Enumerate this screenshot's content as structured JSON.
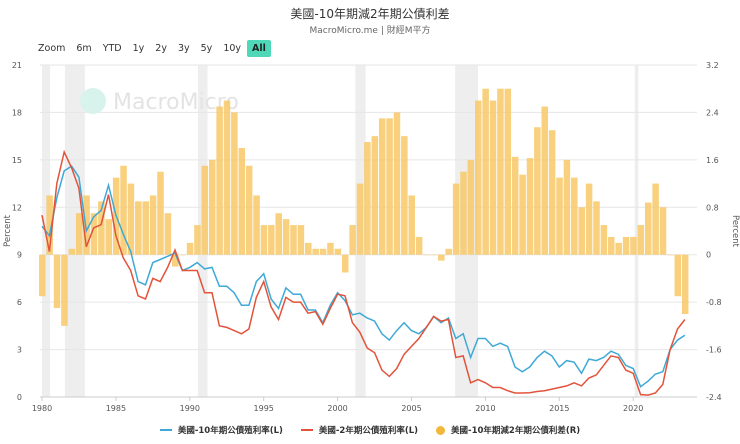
{
  "title": "美國-10年期減2年期公債利差",
  "subtitle": "MacroMicro.me | 財經M平方",
  "watermark": "MacroMicro",
  "range_selector": {
    "label": "Zoom",
    "buttons": [
      "6m",
      "YTD",
      "1y",
      "2y",
      "3y",
      "5y",
      "10y",
      "All"
    ],
    "active": "All"
  },
  "colors": {
    "ten_year": "#3ea9d6",
    "two_year": "#e2533a",
    "spread": "#f7c867",
    "recession": "#eeeeee",
    "active_button": "#4fd8b8"
  },
  "chart_data": {
    "type": "line+bar",
    "ylabel_left": "Percent",
    "ylabel_right": "Percent",
    "ylim_left": [
      0,
      21
    ],
    "yticks_left": [
      "0",
      "3",
      "6",
      "9",
      "12",
      "15",
      "18",
      "21"
    ],
    "ylim_right": [
      -2.4,
      3.2
    ],
    "yticks_right": [
      "-2.4",
      "-1.6",
      "-0.8",
      "0",
      "0.8",
      "1.6",
      "2.4",
      "3.2"
    ],
    "xlim": [
      1979.8,
      2024.2
    ],
    "xticks": [
      "1980",
      "1985",
      "1990",
      "1995",
      "2000",
      "2005",
      "2010",
      "2015",
      "2020"
    ],
    "grid": "horizontal",
    "legend_position": "bottom",
    "recessions": [
      [
        1980.0,
        1980.55
      ],
      [
        1981.55,
        1982.9
      ],
      [
        1990.55,
        1991.2
      ],
      [
        2001.2,
        2001.9
      ],
      [
        2007.95,
        2009.5
      ],
      [
        2020.1,
        2020.35
      ]
    ],
    "x": [
      1980.0,
      1980.5,
      1981.0,
      1981.5,
      1982.0,
      1982.5,
      1983.0,
      1983.5,
      1984.0,
      1984.5,
      1985.0,
      1985.5,
      1986.0,
      1986.5,
      1987.0,
      1987.5,
      1988.0,
      1988.5,
      1989.0,
      1989.5,
      1990.0,
      1990.5,
      1991.0,
      1991.5,
      1992.0,
      1992.5,
      1993.0,
      1993.5,
      1994.0,
      1994.5,
      1995.0,
      1995.5,
      1996.0,
      1996.5,
      1997.0,
      1997.5,
      1998.0,
      1998.5,
      1999.0,
      1999.5,
      2000.0,
      2000.5,
      2001.0,
      2001.5,
      2002.0,
      2002.5,
      2003.0,
      2003.5,
      2004.0,
      2004.5,
      2005.0,
      2005.5,
      2006.0,
      2006.5,
      2007.0,
      2007.5,
      2008.0,
      2008.5,
      2009.0,
      2009.5,
      2010.0,
      2010.5,
      2011.0,
      2011.5,
      2012.0,
      2012.5,
      2013.0,
      2013.5,
      2014.0,
      2014.5,
      2015.0,
      2015.5,
      2016.0,
      2016.5,
      2017.0,
      2017.5,
      2018.0,
      2018.5,
      2019.0,
      2019.5,
      2020.0,
      2020.5,
      2021.0,
      2021.5,
      2022.0,
      2022.5,
      2023.0,
      2023.5
    ],
    "series": [
      {
        "name": "美國-10年期公債殖利率(L)",
        "axis": "left",
        "type": "line",
        "values": [
          10.8,
          10.2,
          12.6,
          14.3,
          14.6,
          13.9,
          10.5,
          11.4,
          11.8,
          13.4,
          11.5,
          10.3,
          9.2,
          7.3,
          7.1,
          8.5,
          8.7,
          8.9,
          9.1,
          8.0,
          8.2,
          8.5,
          8.1,
          8.2,
          7.0,
          7.0,
          6.6,
          5.8,
          5.8,
          7.3,
          7.8,
          6.2,
          5.6,
          6.9,
          6.5,
          6.5,
          5.5,
          5.5,
          4.7,
          5.8,
          6.6,
          6.1,
          5.2,
          5.3,
          5.0,
          4.8,
          4.0,
          3.6,
          4.2,
          4.7,
          4.2,
          4.0,
          4.4,
          5.1,
          4.7,
          5.0,
          3.7,
          4.0,
          2.5,
          3.7,
          3.7,
          3.2,
          3.4,
          3.2,
          1.9,
          1.6,
          1.9,
          2.5,
          2.9,
          2.6,
          1.9,
          2.3,
          2.2,
          1.5,
          2.4,
          2.3,
          2.5,
          2.9,
          2.7,
          2.0,
          1.8,
          0.65,
          1.0,
          1.45,
          1.6,
          3.0,
          3.6,
          3.9
        ]
      },
      {
        "name": "美國-2年期公債殖利率(L)",
        "axis": "left",
        "type": "line",
        "values": [
          11.5,
          9.2,
          13.5,
          15.5,
          14.5,
          13.2,
          9.5,
          10.7,
          10.9,
          12.8,
          10.2,
          8.8,
          8.0,
          6.4,
          6.2,
          7.5,
          7.3,
          8.2,
          9.3,
          8.0,
          8.0,
          8.0,
          6.6,
          6.6,
          4.5,
          4.4,
          4.2,
          4.0,
          4.3,
          6.3,
          7.3,
          5.7,
          4.9,
          6.3,
          6.0,
          6.0,
          5.3,
          5.4,
          4.6,
          5.6,
          6.5,
          6.4,
          4.7,
          4.1,
          3.1,
          2.8,
          1.7,
          1.3,
          1.8,
          2.7,
          3.2,
          3.7,
          4.4,
          5.1,
          4.8,
          4.9,
          2.5,
          2.6,
          0.9,
          1.1,
          0.9,
          0.6,
          0.6,
          0.4,
          0.25,
          0.25,
          0.27,
          0.35,
          0.4,
          0.5,
          0.6,
          0.7,
          0.9,
          0.7,
          1.2,
          1.4,
          2.0,
          2.6,
          2.5,
          1.7,
          1.5,
          0.15,
          0.12,
          0.25,
          0.8,
          3.0,
          4.3,
          4.9
        ]
      },
      {
        "name": "美國-10年期減2年期公債利差(R)",
        "axis": "right",
        "type": "bar",
        "values": [
          -0.7,
          1.0,
          -0.9,
          -1.2,
          0.1,
          0.7,
          1.0,
          0.7,
          0.9,
          0.6,
          1.3,
          1.5,
          1.2,
          0.9,
          0.9,
          1.0,
          1.4,
          0.7,
          -0.2,
          0.0,
          0.2,
          0.5,
          1.5,
          1.6,
          2.5,
          2.6,
          2.4,
          1.8,
          1.5,
          1.0,
          0.5,
          0.5,
          0.7,
          0.6,
          0.5,
          0.5,
          0.2,
          0.1,
          0.1,
          0.2,
          0.1,
          -0.3,
          0.5,
          1.2,
          1.9,
          2.0,
          2.3,
          2.3,
          2.4,
          2.0,
          1.0,
          0.3,
          0.0,
          0.0,
          -0.1,
          0.1,
          1.2,
          1.4,
          1.6,
          2.6,
          2.8,
          2.6,
          2.8,
          2.8,
          1.65,
          1.35,
          1.63,
          2.15,
          2.5,
          2.1,
          1.3,
          1.6,
          1.3,
          0.8,
          1.2,
          0.9,
          0.5,
          0.3,
          0.2,
          0.3,
          0.3,
          0.5,
          0.88,
          1.2,
          0.8,
          0.0,
          -0.7,
          -1.0
        ]
      }
    ]
  }
}
